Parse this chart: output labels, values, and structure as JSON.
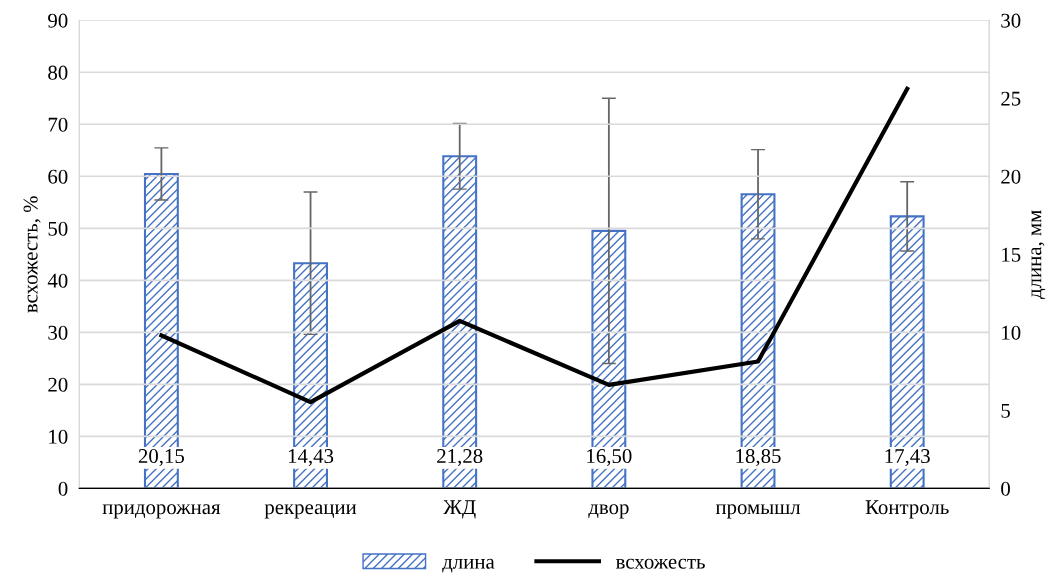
{
  "chart_data": {
    "type": "bar",
    "categories": [
      "придорожная",
      "рекреации",
      "ЖД",
      "двор",
      "промышл",
      "Контроль"
    ],
    "ylabel": "всхожесть, %",
    "y2label": "длина, мм",
    "ylim": [
      0,
      90
    ],
    "yticks": [
      0,
      10,
      20,
      30,
      40,
      50,
      60,
      70,
      80,
      90
    ],
    "y2lim": [
      0,
      30
    ],
    "y2ticks": [
      0,
      5,
      10,
      15,
      20,
      25,
      30
    ],
    "grid": "y",
    "legend": "bottom",
    "series": [
      {
        "name": "длина",
        "axis": "y2",
        "color": "#4472c4",
        "values": [
          20.15,
          14.43,
          21.28,
          16.5,
          18.85,
          17.43
        ],
        "errors": [
          1.67,
          4.56,
          2.1,
          8.5,
          2.86,
          2.22
        ],
        "value_labels": [
          "20,15",
          "14,43",
          "21,28",
          "16,50",
          "18,85",
          "17,43"
        ]
      },
      {
        "name": "всхожесть",
        "type": "line",
        "axis": "y",
        "color": "#000000",
        "values": [
          29.4,
          16.6,
          32.2,
          19.9,
          24.4,
          76.8
        ]
      }
    ]
  }
}
